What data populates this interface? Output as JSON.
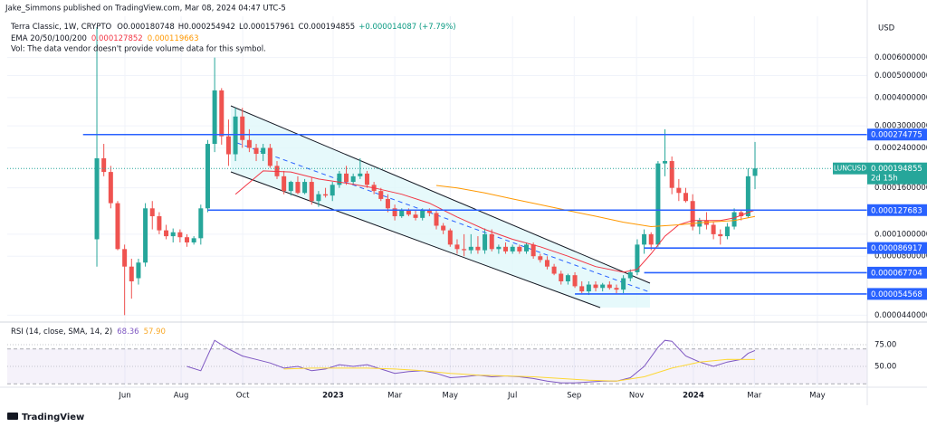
{
  "header": {
    "publisher": "Jake_Simmons published on TradingView.com, Mar 08, 2024 04:47 UTC-5",
    "footer": "TradingView"
  },
  "chart_data": {
    "type": "candlestick",
    "symbol_title": "Terra Classic, 1W, CRYPTO",
    "ohlc_letters": [
      "O",
      "H",
      "L",
      "C"
    ],
    "change": "+0.000014087 (+7.79%)",
    "volume_note": "Vol: The data vendor doesn't provide volume data for this symbol.",
    "currency": "USD",
    "symbol": "LUNCUSD",
    "countdown": "2d 15h",
    "up_color": "#26a69a",
    "down_color": "#ef5350",
    "log_scale": true,
    "grid": true,
    "ylim": [
      4.14e-05,
      0.000912
    ],
    "yticks": [
      {
        "value": 0.0006,
        "label": "0.0006000000"
      },
      {
        "value": 0.0005,
        "label": "0.0005000000"
      },
      {
        "value": 0.0004,
        "label": "0.0004000000"
      },
      {
        "value": 0.0003,
        "label": "0.0003000000"
      },
      {
        "value": 0.00024,
        "label": "0.0002400000"
      },
      {
        "value": 0.00016,
        "label": "0.0001600000"
      },
      {
        "value": 0.0001,
        "label": "0.0001000000"
      },
      {
        "value": 8e-05,
        "label": "0.0000800000"
      },
      {
        "value": 4.4e-05,
        "label": "0.0000440000"
      }
    ],
    "xlim": [
      -12.94,
      111.2
    ],
    "xticks": [
      {
        "value": 4.05,
        "label": "Jun"
      },
      {
        "value": 12.16,
        "label": "Aug"
      },
      {
        "value": 21.05,
        "label": "Oct"
      },
      {
        "value": 34.1,
        "label": "2023"
      },
      {
        "value": 43.0,
        "label": "Mar"
      },
      {
        "value": 51.0,
        "label": "May"
      },
      {
        "value": 60.0,
        "label": "Jul"
      },
      {
        "value": 68.9,
        "label": "Sep"
      },
      {
        "value": 77.9,
        "label": "Nov"
      },
      {
        "value": 86.1,
        "label": "2024"
      },
      {
        "value": 94.9,
        "label": "Mar"
      },
      {
        "value": 104.0,
        "label": "May"
      }
    ],
    "candles": {
      "x": [
        0,
        1,
        2,
        3,
        4,
        5,
        6,
        7,
        8,
        9,
        10,
        11,
        12,
        13,
        14,
        15,
        16,
        17,
        18,
        19,
        20,
        21,
        22,
        23,
        24,
        25,
        26,
        27,
        28,
        29,
        30,
        31,
        32,
        33,
        34,
        35,
        36,
        37,
        38,
        39,
        40,
        41,
        42,
        43,
        44,
        45,
        46,
        47,
        48,
        49,
        50,
        51,
        52,
        53,
        54,
        55,
        56,
        57,
        58,
        59,
        60,
        61,
        62,
        63,
        64,
        65,
        66,
        67,
        68,
        69,
        70,
        71,
        72,
        73,
        74,
        75,
        76,
        77,
        78,
        79,
        80,
        81,
        82,
        83,
        84,
        85,
        86,
        87,
        88,
        89,
        90,
        91,
        92,
        93,
        94,
        95
      ],
      "open": [
        9.5e-05,
        0.000216,
        0.000188,
        0.000137,
        8.6e-05,
        7.2e-05,
        6.4e-05,
        7.5e-05,
        0.00013,
        0.00012,
        0.000104,
        9.8e-05,
        0.000102,
        9.7e-05,
        9.2e-05,
        9.6e-05,
        0.00013,
        0.00025,
        0.00043,
        0.00027,
        0.000225,
        0.00033,
        0.00026,
        0.00024,
        0.000226,
        0.00024,
        0.0002,
        0.00018,
        0.000155,
        0.00017,
        0.000152,
        0.00017,
        0.00014,
        0.00015,
        0.000148,
        0.000165,
        0.000185,
        0.00017,
        0.00018,
        0.000185,
        0.000165,
        0.000155,
        0.000143,
        0.00013,
        0.00012,
        0.000128,
        0.000122,
        0.000118,
        0.000127,
        0.000124,
        0.000109,
        0.000104,
        9e-05,
        8.6e-05,
        8.5e-05,
        8.8e-05,
        8.5e-05,
        0.0001,
        8.6e-05,
        8.8e-05,
        8.4e-05,
        8.8e-05,
        8.4e-05,
        9e-05,
        8e-05,
        7.7e-05,
        7.2e-05,
        6.7e-05,
        6.2e-05,
        6.6e-05,
        5.9e-05,
        5.6e-05,
        6e-05,
        5.8e-05,
        6e-05,
        5.8e-05,
        5.7e-05,
        6.4e-05,
        6.8e-05,
        9e-05,
        0.0001,
        9e-05,
        0.000205,
        0.00021,
        0.00016,
        0.000152,
        0.00014,
        0.000108,
        0.000115,
        0.00011,
        0.0001,
        9.8e-05,
        0.000108,
        0.000125,
        0.00012,
        0.000180748
      ],
      "high": [
        0.000817,
        0.00025,
        0.0002,
        0.00014,
        9e-05,
        7.8e-05,
        7.8e-05,
        0.000137,
        0.00014,
        0.000125,
        0.00011,
        0.000106,
        0.000105,
        0.0001,
        9.8e-05,
        0.000135,
        0.00026,
        0.0006,
        0.00044,
        0.00032,
        0.00036,
        0.00036,
        0.00029,
        0.00025,
        0.00025,
        0.00025,
        0.00021,
        0.00019,
        0.000172,
        0.00018,
        0.000175,
        0.000178,
        0.000155,
        0.00016,
        0.00017,
        0.00019,
        0.0002,
        0.000185,
        0.000216,
        0.00019,
        0.00017,
        0.00016,
        0.00015,
        0.000135,
        0.00013,
        0.00013,
        0.000127,
        0.00013,
        0.00013,
        0.000127,
        0.000112,
        0.000106,
        9.5e-05,
        0.0001,
        0.0001,
        9.8e-05,
        0.000106,
        0.000105,
        9e-05,
        9.2e-05,
        9e-05,
        9e-05,
        9.2e-05,
        9.2e-05,
        8.2e-05,
        8e-05,
        7.4e-05,
        6.9e-05,
        6.7e-05,
        6.8e-05,
        6.2e-05,
        6.2e-05,
        6.2e-05,
        6.1e-05,
        6.2e-05,
        6e-05,
        6.6e-05,
        7e-05,
        9.5e-05,
        0.000105,
        0.000102,
        0.00021,
        0.00029,
        0.00022,
        0.000175,
        0.00016,
        0.00015,
        0.000118,
        0.000125,
        0.000113,
        0.000105,
        0.000112,
        0.00013,
        0.000128,
        0.000195,
        0.000254942
      ],
      "low": [
        7.2e-05,
        0.00018,
        0.00013,
        8.5e-05,
        4.4e-05,
        5.2e-05,
        6e-05,
        7.2e-05,
        0.000105,
        0.0001,
        9.5e-05,
        9.2e-05,
        9.2e-05,
        8.8e-05,
        9e-05,
        9e-05,
        0.000125,
        0.00023,
        0.000248,
        0.0002,
        0.00021,
        0.00024,
        0.00023,
        0.00021,
        0.00021,
        0.000196,
        0.000175,
        0.00015,
        0.000148,
        0.00015,
        0.00015,
        0.000135,
        0.000132,
        0.000145,
        0.00014,
        0.00016,
        0.000165,
        0.000165,
        0.000175,
        0.00016,
        0.00015,
        0.00014,
        0.000125,
        0.000115,
        0.000118,
        0.00012,
        0.000115,
        0.000115,
        0.00012,
        0.000105,
        0.0001,
        8.8e-05,
        8.2e-05,
        8e-05,
        8.2e-05,
        8.2e-05,
        8.2e-05,
        8.4e-05,
        8.2e-05,
        8.2e-05,
        8.2e-05,
        8.2e-05,
        8.2e-05,
        7.8e-05,
        7.5e-05,
        7e-05,
        6.6e-05,
        6e-05,
        6e-05,
        5.8e-05,
        5.5e-05,
        5.4e-05,
        5.6e-05,
        5.6e-05,
        5.7e-05,
        5.5e-05,
        5.5e-05,
        6.2e-05,
        6.6e-05,
        8.2e-05,
        8.5e-05,
        8.8e-05,
        0.00018,
        0.00015,
        0.00014,
        0.000138,
        0.000104,
        0.0001,
        0.000105,
        9.5e-05,
        9e-05,
        9.5e-05,
        0.000105,
        0.000115,
        0.000118,
        0.000157961
      ],
      "close": [
        0.000216,
        0.000188,
        0.000137,
        8.6e-05,
        7.2e-05,
        6.2e-05,
        7.5e-05,
        0.00013,
        0.00012,
        0.000104,
        9.8e-05,
        0.000102,
        9.7e-05,
        9.2e-05,
        9.6e-05,
        0.00013,
        0.00025,
        0.00043,
        0.00027,
        0.000225,
        0.00033,
        0.00026,
        0.00024,
        0.000226,
        0.00024,
        0.0002,
        0.00018,
        0.000155,
        0.00017,
        0.000152,
        0.00017,
        0.00014,
        0.00015,
        0.000148,
        0.000165,
        0.000185,
        0.00017,
        0.00018,
        0.000185,
        0.000165,
        0.000155,
        0.000143,
        0.00013,
        0.00012,
        0.000128,
        0.000122,
        0.000118,
        0.000127,
        0.000124,
        0.000109,
        0.000104,
        9e-05,
        8.6e-05,
        8.5e-05,
        8.8e-05,
        8.5e-05,
        0.0001,
        8.6e-05,
        8.8e-05,
        8.4e-05,
        8.8e-05,
        8.4e-05,
        9e-05,
        8e-05,
        7.7e-05,
        7.2e-05,
        6.7e-05,
        6.2e-05,
        6.6e-05,
        5.9e-05,
        5.6e-05,
        6e-05,
        5.8e-05,
        6e-05,
        5.8e-05,
        5.7e-05,
        6.4e-05,
        6.8e-05,
        9e-05,
        0.0001,
        9e-05,
        0.000205,
        0.00021,
        0.00016,
        0.000152,
        0.00014,
        0.000108,
        0.000115,
        0.00011,
        0.0001,
        9.8e-05,
        0.000108,
        0.000125,
        0.00012,
        0.00018,
        0.000194855
      ]
    },
    "ema": {
      "label": "EMA 20/50/100/200",
      "lines": [
        {
          "color": "#f23645",
          "x": [
            20,
            24,
            28,
            32,
            36,
            40,
            44,
            48,
            52,
            56,
            60,
            64,
            68,
            72,
            76,
            78,
            80,
            82,
            84,
            86,
            88,
            90,
            92,
            95
          ],
          "values": [
            0.00015,
            0.00019,
            0.000188,
            0.000175,
            0.000168,
            0.00016,
            0.00015,
            0.000137,
            0.000119,
            0.000105,
            9.5e-05,
            8.8e-05,
            8e-05,
            7.2e-05,
            6.8e-05,
            7e-05,
            8.2e-05,
            9.8e-05,
            0.00011,
            0.000115,
            0.000115,
            0.000115,
            0.000118,
            0.000127852
          ]
        },
        {
          "color": "#ff9800",
          "x": [
            49,
            52,
            56,
            60,
            64,
            68,
            72,
            76,
            80,
            84,
            88,
            92,
            95
          ],
          "values": [
            0.000164,
            0.00016,
            0.000152,
            0.000143,
            0.000135,
            0.000127,
            0.00012,
            0.000113,
            0.000108,
            0.00011,
            0.000113,
            0.000115,
            0.000119663
          ]
        }
      ]
    },
    "horizontal_lines": [
      {
        "value": 0.000274775,
        "from": -2
      },
      {
        "value": 0.000127683,
        "from": 16
      },
      {
        "value": 8.6917e-05,
        "from": 79
      },
      {
        "value": 6.7704e-05,
        "from": 79
      },
      {
        "value": 5.4568e-05,
        "from": 69
      }
    ],
    "line_color": "#2962ff",
    "rsi": {
      "label": "RSI (14, close, SMA, 14, 2)",
      "legend_values": [
        {
          "value": 68.36,
          "label": "68.36"
        },
        {
          "value": 57.9,
          "label": "57.90"
        }
      ],
      "ylim": [
        26,
        99
      ],
      "yticks": [
        {
          "value": 75,
          "label": "75.00"
        },
        {
          "value": 50,
          "label": "50.00"
        }
      ],
      "bands": [
        30,
        70
      ],
      "series": [
        {
          "color": "#7e57c2",
          "x": [
            13,
            15,
            17,
            19,
            21,
            23,
            25,
            27,
            29,
            31,
            33,
            35,
            37,
            39,
            41,
            43,
            45,
            47,
            49,
            51,
            53,
            55,
            57,
            59,
            61,
            63,
            65,
            67,
            69,
            71,
            73,
            75,
            77,
            79,
            81,
            82,
            83,
            85,
            87,
            89,
            91,
            93,
            94,
            95
          ],
          "values": [
            50,
            45,
            80,
            70,
            62,
            58,
            54,
            48,
            50,
            45,
            47,
            52,
            50,
            52,
            47,
            42,
            44,
            45,
            42,
            37,
            38,
            40,
            38,
            39,
            38,
            36,
            33,
            31,
            31,
            32,
            33,
            33,
            37,
            50,
            72,
            80,
            79,
            62,
            55,
            50,
            55,
            58,
            65,
            68.36
          ]
        },
        {
          "color": "#fdd835",
          "x": [
            27,
            31,
            35,
            39,
            43,
            47,
            51,
            55,
            59,
            63,
            67,
            71,
            75,
            79,
            83,
            87,
            91,
            95
          ],
          "values": [
            47,
            48,
            48,
            48,
            47,
            45,
            42,
            40,
            39,
            38,
            36,
            34,
            33,
            38,
            48,
            55,
            58,
            57.9
          ]
        }
      ]
    }
  }
}
